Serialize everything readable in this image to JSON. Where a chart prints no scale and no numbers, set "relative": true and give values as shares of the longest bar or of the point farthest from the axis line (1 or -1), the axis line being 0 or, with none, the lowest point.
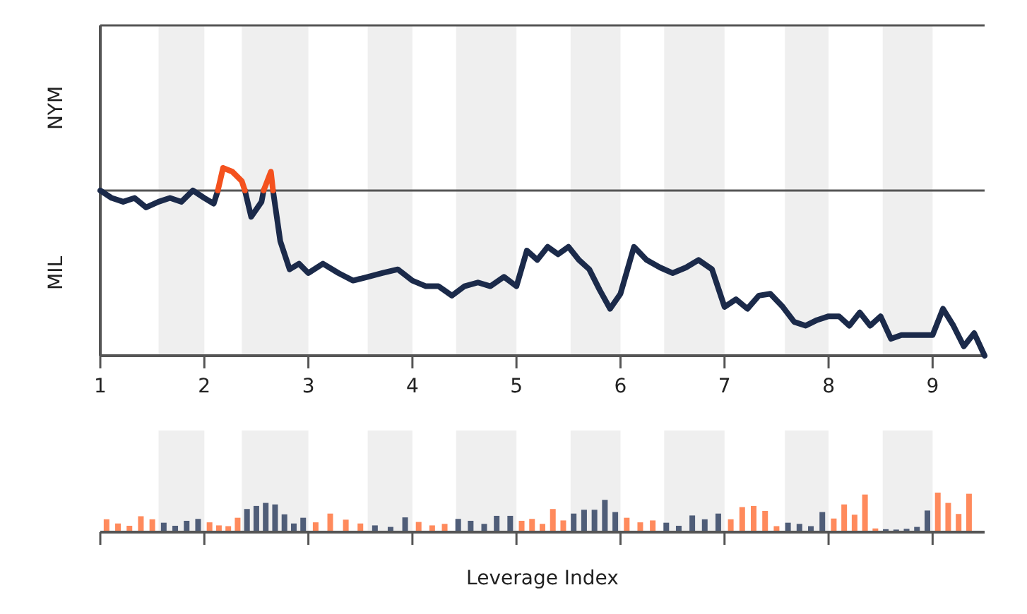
{
  "chart_data": [
    {
      "type": "line",
      "relative": true,
      "xlim": [
        1,
        9.5
      ],
      "xticks": [
        1,
        2,
        3,
        4,
        5,
        6,
        7,
        8,
        9
      ],
      "annotations": [
        "NYM",
        "MIL"
      ],
      "ref_lines": [
        {
          "axis": "y",
          "value": 0.88,
          "color": "#555555"
        }
      ],
      "bands": [
        {
          "axis": "x",
          "from": 1.56,
          "to": 2,
          "color": "#efefef"
        },
        {
          "axis": "x",
          "from": 2.36,
          "to": 3,
          "color": "#efefef"
        },
        {
          "axis": "x",
          "from": 3.57,
          "to": 4,
          "color": "#efefef"
        },
        {
          "axis": "x",
          "from": 4.42,
          "to": 5,
          "color": "#efefef"
        },
        {
          "axis": "x",
          "from": 5.52,
          "to": 6,
          "color": "#efefef"
        },
        {
          "axis": "x",
          "from": 6.42,
          "to": 7,
          "color": "#efefef"
        },
        {
          "axis": "x",
          "from": 7.58,
          "to": 8,
          "color": "#efefef"
        },
        {
          "axis": "x",
          "from": 8.52,
          "to": 9,
          "color": "#efefef"
        }
      ],
      "series": [
        {
          "color": "#1b2a4a",
          "x": [
            1,
            1.11,
            1.22,
            1.33,
            1.44,
            1.56,
            1.67,
            1.78,
            1.89,
            2,
            2.09,
            2.13,
            2.18,
            2.27,
            2.36,
            2.39,
            2.45,
            2.55,
            2.57,
            2.64,
            2.66,
            2.73,
            2.82,
            2.91,
            3,
            3.14,
            3.29,
            3.43,
            3.57,
            3.71,
            3.86,
            4,
            4.13,
            4.25,
            4.38,
            4.5,
            4.63,
            4.75,
            4.88,
            5,
            5.1,
            5.2,
            5.3,
            5.4,
            5.5,
            5.6,
            5.7,
            5.8,
            5.9,
            6,
            6.13,
            6.25,
            6.38,
            6.5,
            6.63,
            6.75,
            6.88,
            7,
            7.11,
            7.22,
            7.33,
            7.44,
            7.56,
            7.67,
            7.78,
            7.89,
            8,
            8.1,
            8.2,
            8.3,
            8.4,
            8.5,
            8.6,
            8.7,
            8.8,
            8.9,
            9,
            9.1,
            9.2,
            9.3,
            9.4,
            9.5
          ],
          "values": [
            0.88,
            0.84,
            0.82,
            0.84,
            0.79,
            0.82,
            0.84,
            0.82,
            0.88,
            0.84,
            0.81,
            0.88,
            null,
            null,
            null,
            0.88,
            0.74,
            0.82,
            0.88,
            null,
            0.88,
            0.61,
            0.46,
            0.49,
            0.44,
            0.49,
            0.44,
            0.4,
            0.42,
            0.44,
            0.46,
            0.4,
            0.37,
            0.37,
            0.32,
            0.37,
            0.39,
            0.37,
            0.42,
            0.37,
            0.56,
            0.51,
            0.58,
            0.54,
            0.58,
            0.51,
            0.46,
            0.35,
            0.25,
            0.33,
            0.58,
            0.51,
            0.47,
            0.44,
            0.47,
            0.51,
            0.46,
            0.26,
            0.3,
            0.25,
            0.32,
            0.33,
            0.26,
            0.18,
            0.16,
            0.19,
            0.21,
            0.21,
            0.16,
            0.23,
            0.16,
            0.21,
            0.09,
            0.11,
            0.11,
            0.11,
            0.11,
            0.25,
            0.16,
            0.05,
            0.12,
            0
          ]
        },
        {
          "color": "#f4511e",
          "x": [
            2.13,
            2.18,
            2.27,
            2.36,
            2.39,
            2.45,
            2.57,
            2.64,
            2.66
          ],
          "values": [
            0.88,
            1,
            0.98,
            0.93,
            0.88,
            null,
            0.88,
            0.98,
            0.88
          ]
        }
      ]
    },
    {
      "type": "bar",
      "relative": true,
      "xlabel": "Leverage Index",
      "xlim": [
        1,
        9.5
      ],
      "xticks": [
        1,
        2,
        3,
        4,
        5,
        6,
        7,
        8,
        9
      ],
      "tick_labels": false,
      "bands": [
        {
          "axis": "x",
          "from": 1.56,
          "to": 2,
          "color": "#efefef"
        },
        {
          "axis": "x",
          "from": 2.36,
          "to": 3,
          "color": "#efefef"
        },
        {
          "axis": "x",
          "from": 3.57,
          "to": 4,
          "color": "#efefef"
        },
        {
          "axis": "x",
          "from": 4.42,
          "to": 5,
          "color": "#efefef"
        },
        {
          "axis": "x",
          "from": 5.52,
          "to": 6,
          "color": "#efefef"
        },
        {
          "axis": "x",
          "from": 6.42,
          "to": 7,
          "color": "#efefef"
        },
        {
          "axis": "x",
          "from": 7.58,
          "to": 8,
          "color": "#efefef"
        },
        {
          "axis": "x",
          "from": 8.52,
          "to": 9,
          "color": "#efefef"
        }
      ],
      "x": [
        1.06,
        1.17,
        1.28,
        1.39,
        1.5,
        1.61,
        1.72,
        1.83,
        1.94,
        2.05,
        2.14,
        2.23,
        2.32,
        2.41,
        2.5,
        2.59,
        2.68,
        2.77,
        2.86,
        2.95,
        3.07,
        3.21,
        3.36,
        3.5,
        3.64,
        3.79,
        3.93,
        4.06,
        4.19,
        4.31,
        4.44,
        4.56,
        4.69,
        4.81,
        4.94,
        5.05,
        5.15,
        5.25,
        5.35,
        5.45,
        5.55,
        5.65,
        5.75,
        5.85,
        5.95,
        6.06,
        6.19,
        6.31,
        6.44,
        6.56,
        6.69,
        6.81,
        6.94,
        7.06,
        7.17,
        7.28,
        7.39,
        7.5,
        7.61,
        7.72,
        7.83,
        7.94,
        8.05,
        8.15,
        8.25,
        8.35,
        8.45,
        8.55,
        8.65,
        8.75,
        8.85,
        8.95,
        9.05,
        9.15,
        9.25,
        9.35
      ],
      "values": [
        0.3,
        0.19,
        0.13,
        0.38,
        0.3,
        0.21,
        0.13,
        0.26,
        0.31,
        0.22,
        0.14,
        0.12,
        0.34,
        0.57,
        0.65,
        0.73,
        0.69,
        0.43,
        0.19,
        0.34,
        0.22,
        0.45,
        0.29,
        0.19,
        0.14,
        0.1,
        0.35,
        0.23,
        0.14,
        0.18,
        0.31,
        0.26,
        0.18,
        0.39,
        0.39,
        0.26,
        0.31,
        0.18,
        0.57,
        0.27,
        0.45,
        0.55,
        0.55,
        0.81,
        0.49,
        0.34,
        0.22,
        0.27,
        0.21,
        0.13,
        0.4,
        0.3,
        0.45,
        0.3,
        0.62,
        0.65,
        0.52,
        0.12,
        0.21,
        0.18,
        0.12,
        0.49,
        0.32,
        0.69,
        0.42,
        0.95,
        0.06,
        0.04,
        0.03,
        0.05,
        0.1,
        0.53,
        1,
        0.73,
        0.44,
        0.97
      ],
      "colors": [
        "#ff8a5c",
        "#ff8a5c",
        "#ff8a5c",
        "#ff8a5c",
        "#ff8a5c",
        "#4f5d78",
        "#4f5d78",
        "#4f5d78",
        "#4f5d78",
        "#ff8a5c",
        "#ff8a5c",
        "#ff8a5c",
        "#ff8a5c",
        "#4f5d78",
        "#4f5d78",
        "#4f5d78",
        "#4f5d78",
        "#4f5d78",
        "#4f5d78",
        "#4f5d78",
        "#ff8a5c",
        "#ff8a5c",
        "#ff8a5c",
        "#ff8a5c",
        "#4f5d78",
        "#4f5d78",
        "#4f5d78",
        "#ff8a5c",
        "#ff8a5c",
        "#ff8a5c",
        "#4f5d78",
        "#4f5d78",
        "#4f5d78",
        "#4f5d78",
        "#4f5d78",
        "#ff8a5c",
        "#ff8a5c",
        "#ff8a5c",
        "#ff8a5c",
        "#ff8a5c",
        "#4f5d78",
        "#4f5d78",
        "#4f5d78",
        "#4f5d78",
        "#4f5d78",
        "#ff8a5c",
        "#ff8a5c",
        "#ff8a5c",
        "#4f5d78",
        "#4f5d78",
        "#4f5d78",
        "#4f5d78",
        "#4f5d78",
        "#ff8a5c",
        "#ff8a5c",
        "#ff8a5c",
        "#ff8a5c",
        "#ff8a5c",
        "#4f5d78",
        "#4f5d78",
        "#4f5d78",
        "#4f5d78",
        "#ff8a5c",
        "#ff8a5c",
        "#ff8a5c",
        "#ff8a5c",
        "#ff8a5c",
        "#4f5d78",
        "#4f5d78",
        "#4f5d78",
        "#4f5d78",
        "#4f5d78",
        "#ff8a5c",
        "#ff8a5c",
        "#ff8a5c",
        "#ff8a5c"
      ]
    }
  ]
}
